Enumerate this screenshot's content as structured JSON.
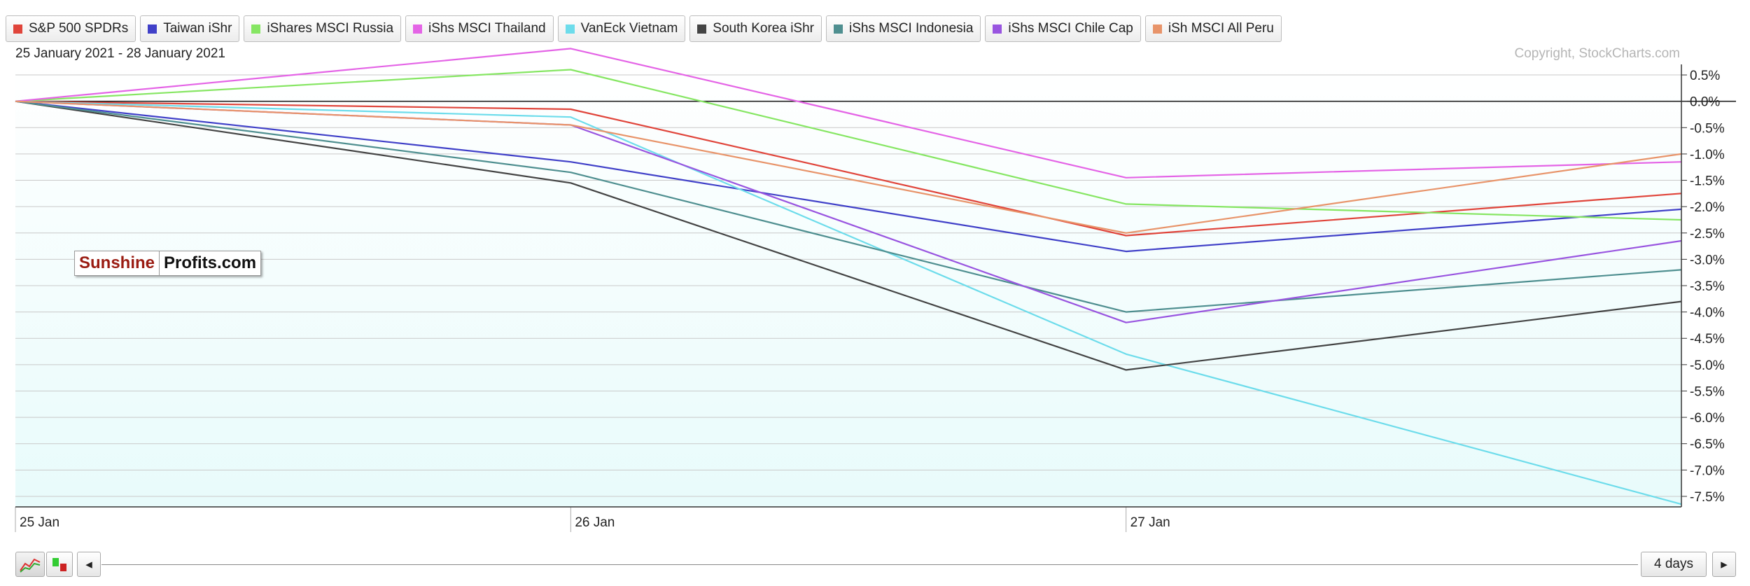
{
  "date_range": "25 January 2021 - 28 January 2021",
  "copyright": "Copyright, StockCharts.com",
  "watermark": {
    "part1": "Sunshine",
    "part2": "Profits.com"
  },
  "footer": {
    "range_label": "4 days",
    "scroll_left": "◂",
    "scroll_right": "▸"
  },
  "chart_data": {
    "type": "line",
    "x": [
      "25 Jan",
      "26 Jan",
      "27 Jan",
      "28 Jan"
    ],
    "x_tick_labels": [
      "25 Jan",
      "26 Jan",
      "27 Jan"
    ],
    "y_axis_side": "right",
    "y_ticks": [
      0.5,
      0.0,
      -0.5,
      -1.0,
      -1.5,
      -2.0,
      -2.5,
      -3.0,
      -3.5,
      -4.0,
      -4.5,
      -5.0,
      -5.5,
      -6.0,
      -6.5,
      -7.0,
      -7.5
    ],
    "y_tick_labels": [
      "0.5%",
      "0.0%",
      "-0.5%",
      "-1.0%",
      "-1.5%",
      "-2.0%",
      "-2.5%",
      "-3.0%",
      "-3.5%",
      "-4.0%",
      "-4.5%",
      "-5.0%",
      "-5.5%",
      "-6.0%",
      "-6.5%",
      "-7.0%",
      "-7.5%"
    ],
    "ylim": [
      -7.7,
      0.7
    ],
    "grid": true,
    "legend_position": "top",
    "series": [
      {
        "name": "S&P 500 SPDRs",
        "color": "#e0453b",
        "values": [
          0,
          -0.15,
          -2.55,
          -1.75
        ]
      },
      {
        "name": "Taiwan iShr",
        "color": "#4040c8",
        "values": [
          0,
          -1.15,
          -2.85,
          -2.05
        ]
      },
      {
        "name": "iShares MSCI Russia",
        "color": "#86e663",
        "values": [
          0,
          0.6,
          -1.95,
          -2.25
        ]
      },
      {
        "name": "iShs MSCI Thailand",
        "color": "#e464e6",
        "values": [
          0,
          1.0,
          -1.45,
          -1.15
        ]
      },
      {
        "name": "VanEck Vietnam",
        "color": "#6ddceb",
        "values": [
          0,
          -0.3,
          -4.8,
          -7.65
        ]
      },
      {
        "name": "South Korea iShr",
        "color": "#444444",
        "values": [
          0,
          -1.55,
          -5.1,
          -3.8
        ]
      },
      {
        "name": "iShs MSCI Indonesia",
        "color": "#4f8f90",
        "values": [
          0,
          -1.35,
          -4.0,
          -3.2
        ]
      },
      {
        "name": "iShs MSCI Chile Cap",
        "color": "#9955e0",
        "values": [
          0,
          -0.45,
          -4.2,
          -2.65
        ]
      },
      {
        "name": "iSh MSCI All Peru",
        "color": "#e8946a",
        "values": [
          0,
          -0.45,
          -2.5,
          -1.0
        ]
      }
    ]
  }
}
